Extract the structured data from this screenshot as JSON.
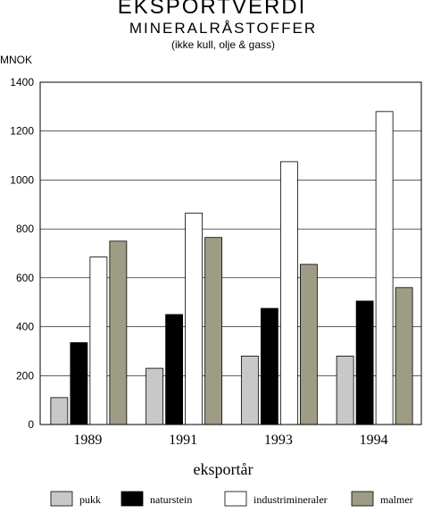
{
  "chart_data": {
    "type": "bar",
    "title": "EKSPORTVERDI",
    "subtitle": "MINERALRÅSTOFFER",
    "subtitle2": "(ikke kull, olje & gass)",
    "ylabel": "MNOK",
    "xlabel": "eksportår",
    "categories": [
      "1989",
      "1991",
      "1993",
      "1994"
    ],
    "ylim": [
      0,
      1400
    ],
    "yticks": [
      0,
      200,
      400,
      600,
      800,
      1000,
      1200,
      1400
    ],
    "grid": true,
    "legend_position": "bottom",
    "series": [
      {
        "name": "pukk",
        "color": "#c8c8c8",
        "values": [
          110,
          230,
          280,
          280
        ]
      },
      {
        "name": "naturstein",
        "color": "#000000",
        "values": [
          335,
          450,
          475,
          505
        ]
      },
      {
        "name": "industrimineraler",
        "color": "#ffffff",
        "values": [
          685,
          865,
          1075,
          1280
        ]
      },
      {
        "name": "malmer",
        "color": "#9e9c84",
        "values": [
          750,
          765,
          655,
          560
        ]
      }
    ]
  }
}
